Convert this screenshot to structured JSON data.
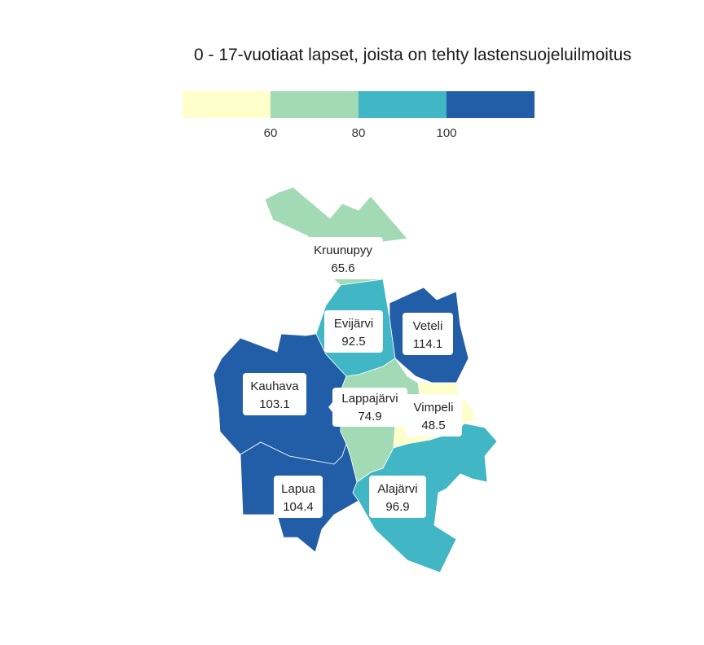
{
  "title": "0 - 17-vuotiaat lapset, joista on tehty lastensuojeluilmoitus",
  "legend": {
    "colors": [
      "#ffffcc",
      "#a1dab4",
      "#41b6c4",
      "#225ea8"
    ],
    "ticks": [
      "60",
      "80",
      "100"
    ]
  },
  "regions": [
    {
      "name": "Kruunupyy",
      "value": "65.6",
      "color": "#a1dab4"
    },
    {
      "name": "Evijärvi",
      "value": "92.5",
      "color": "#41b6c4"
    },
    {
      "name": "Veteli",
      "value": "114.1",
      "color": "#225ea8"
    },
    {
      "name": "Kauhava",
      "value": "103.1",
      "color": "#225ea8"
    },
    {
      "name": "Lappajärvi",
      "value": "74.9",
      "color": "#a1dab4"
    },
    {
      "name": "Vimpeli",
      "value": "48.5",
      "color": "#ffffcc"
    },
    {
      "name": "Lapua",
      "value": "104.4",
      "color": "#225ea8"
    },
    {
      "name": "Alajärvi",
      "value": "96.9",
      "color": "#41b6c4"
    }
  ]
}
